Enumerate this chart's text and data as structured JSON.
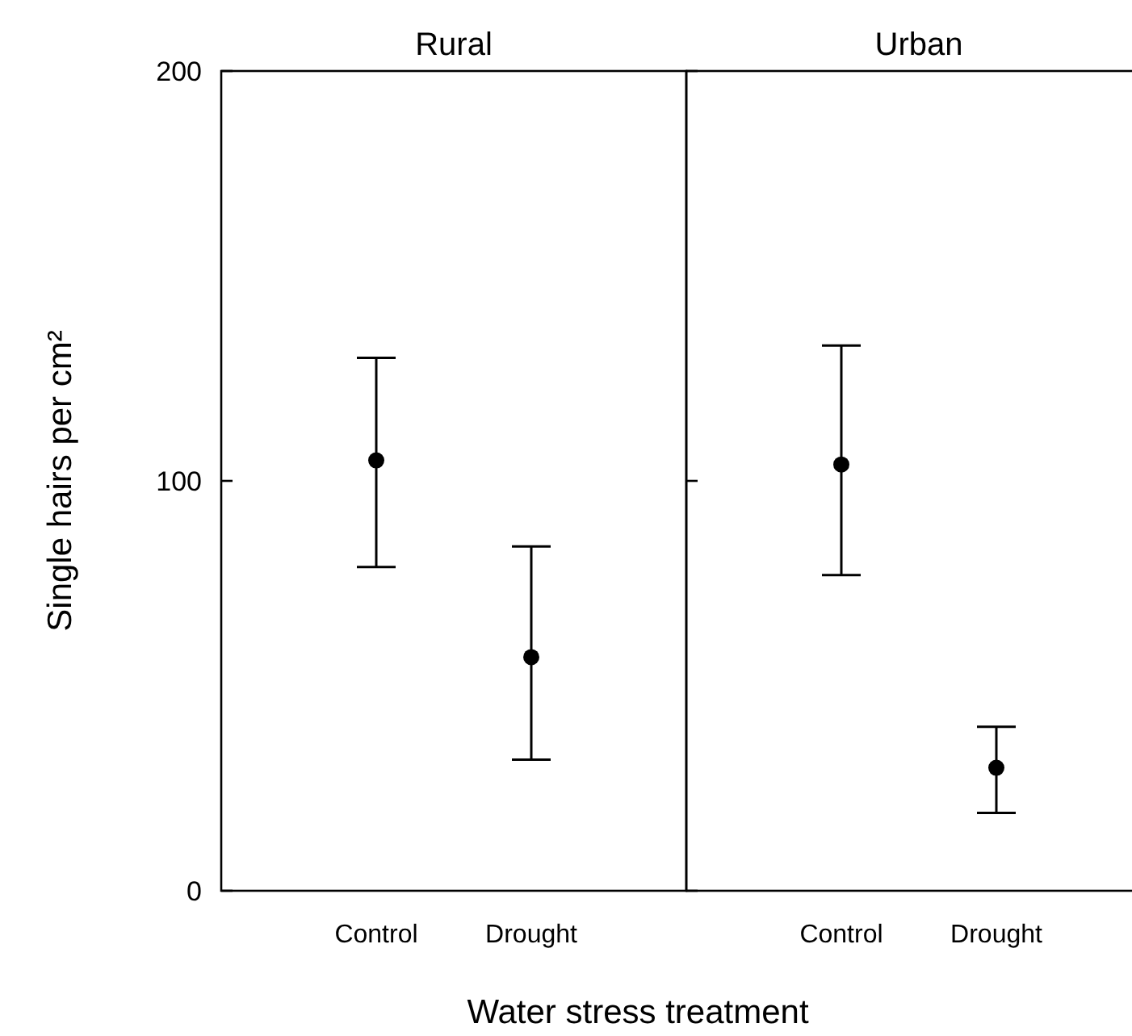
{
  "chart_data": [
    {
      "type": "scatter",
      "title": "Rural",
      "ylabel": "Single hairs per cm²",
      "xlabel": "Water stress treatment",
      "categories": [
        "Control",
        "Drought"
      ],
      "series": [
        {
          "color": "#000000",
          "values": [
            105,
            57
          ],
          "errors": [
            [
              79,
              130
            ],
            [
              32,
              84
            ]
          ]
        }
      ],
      "ylim": [
        0,
        200
      ],
      "yticks": [
        0,
        100,
        200
      ],
      "marker": "circle"
    },
    {
      "type": "scatter",
      "title": "Urban",
      "categories": [
        "Control",
        "Drought"
      ],
      "series": [
        {
          "color": "#000000",
          "values": [
            104,
            30
          ],
          "errors": [
            [
              77,
              133
            ],
            [
              19,
              40
            ]
          ]
        }
      ],
      "ylim": [
        0,
        200
      ],
      "yticks": [
        0,
        100,
        200
      ],
      "marker": "circle",
      "tick_labels": "x"
    }
  ]
}
